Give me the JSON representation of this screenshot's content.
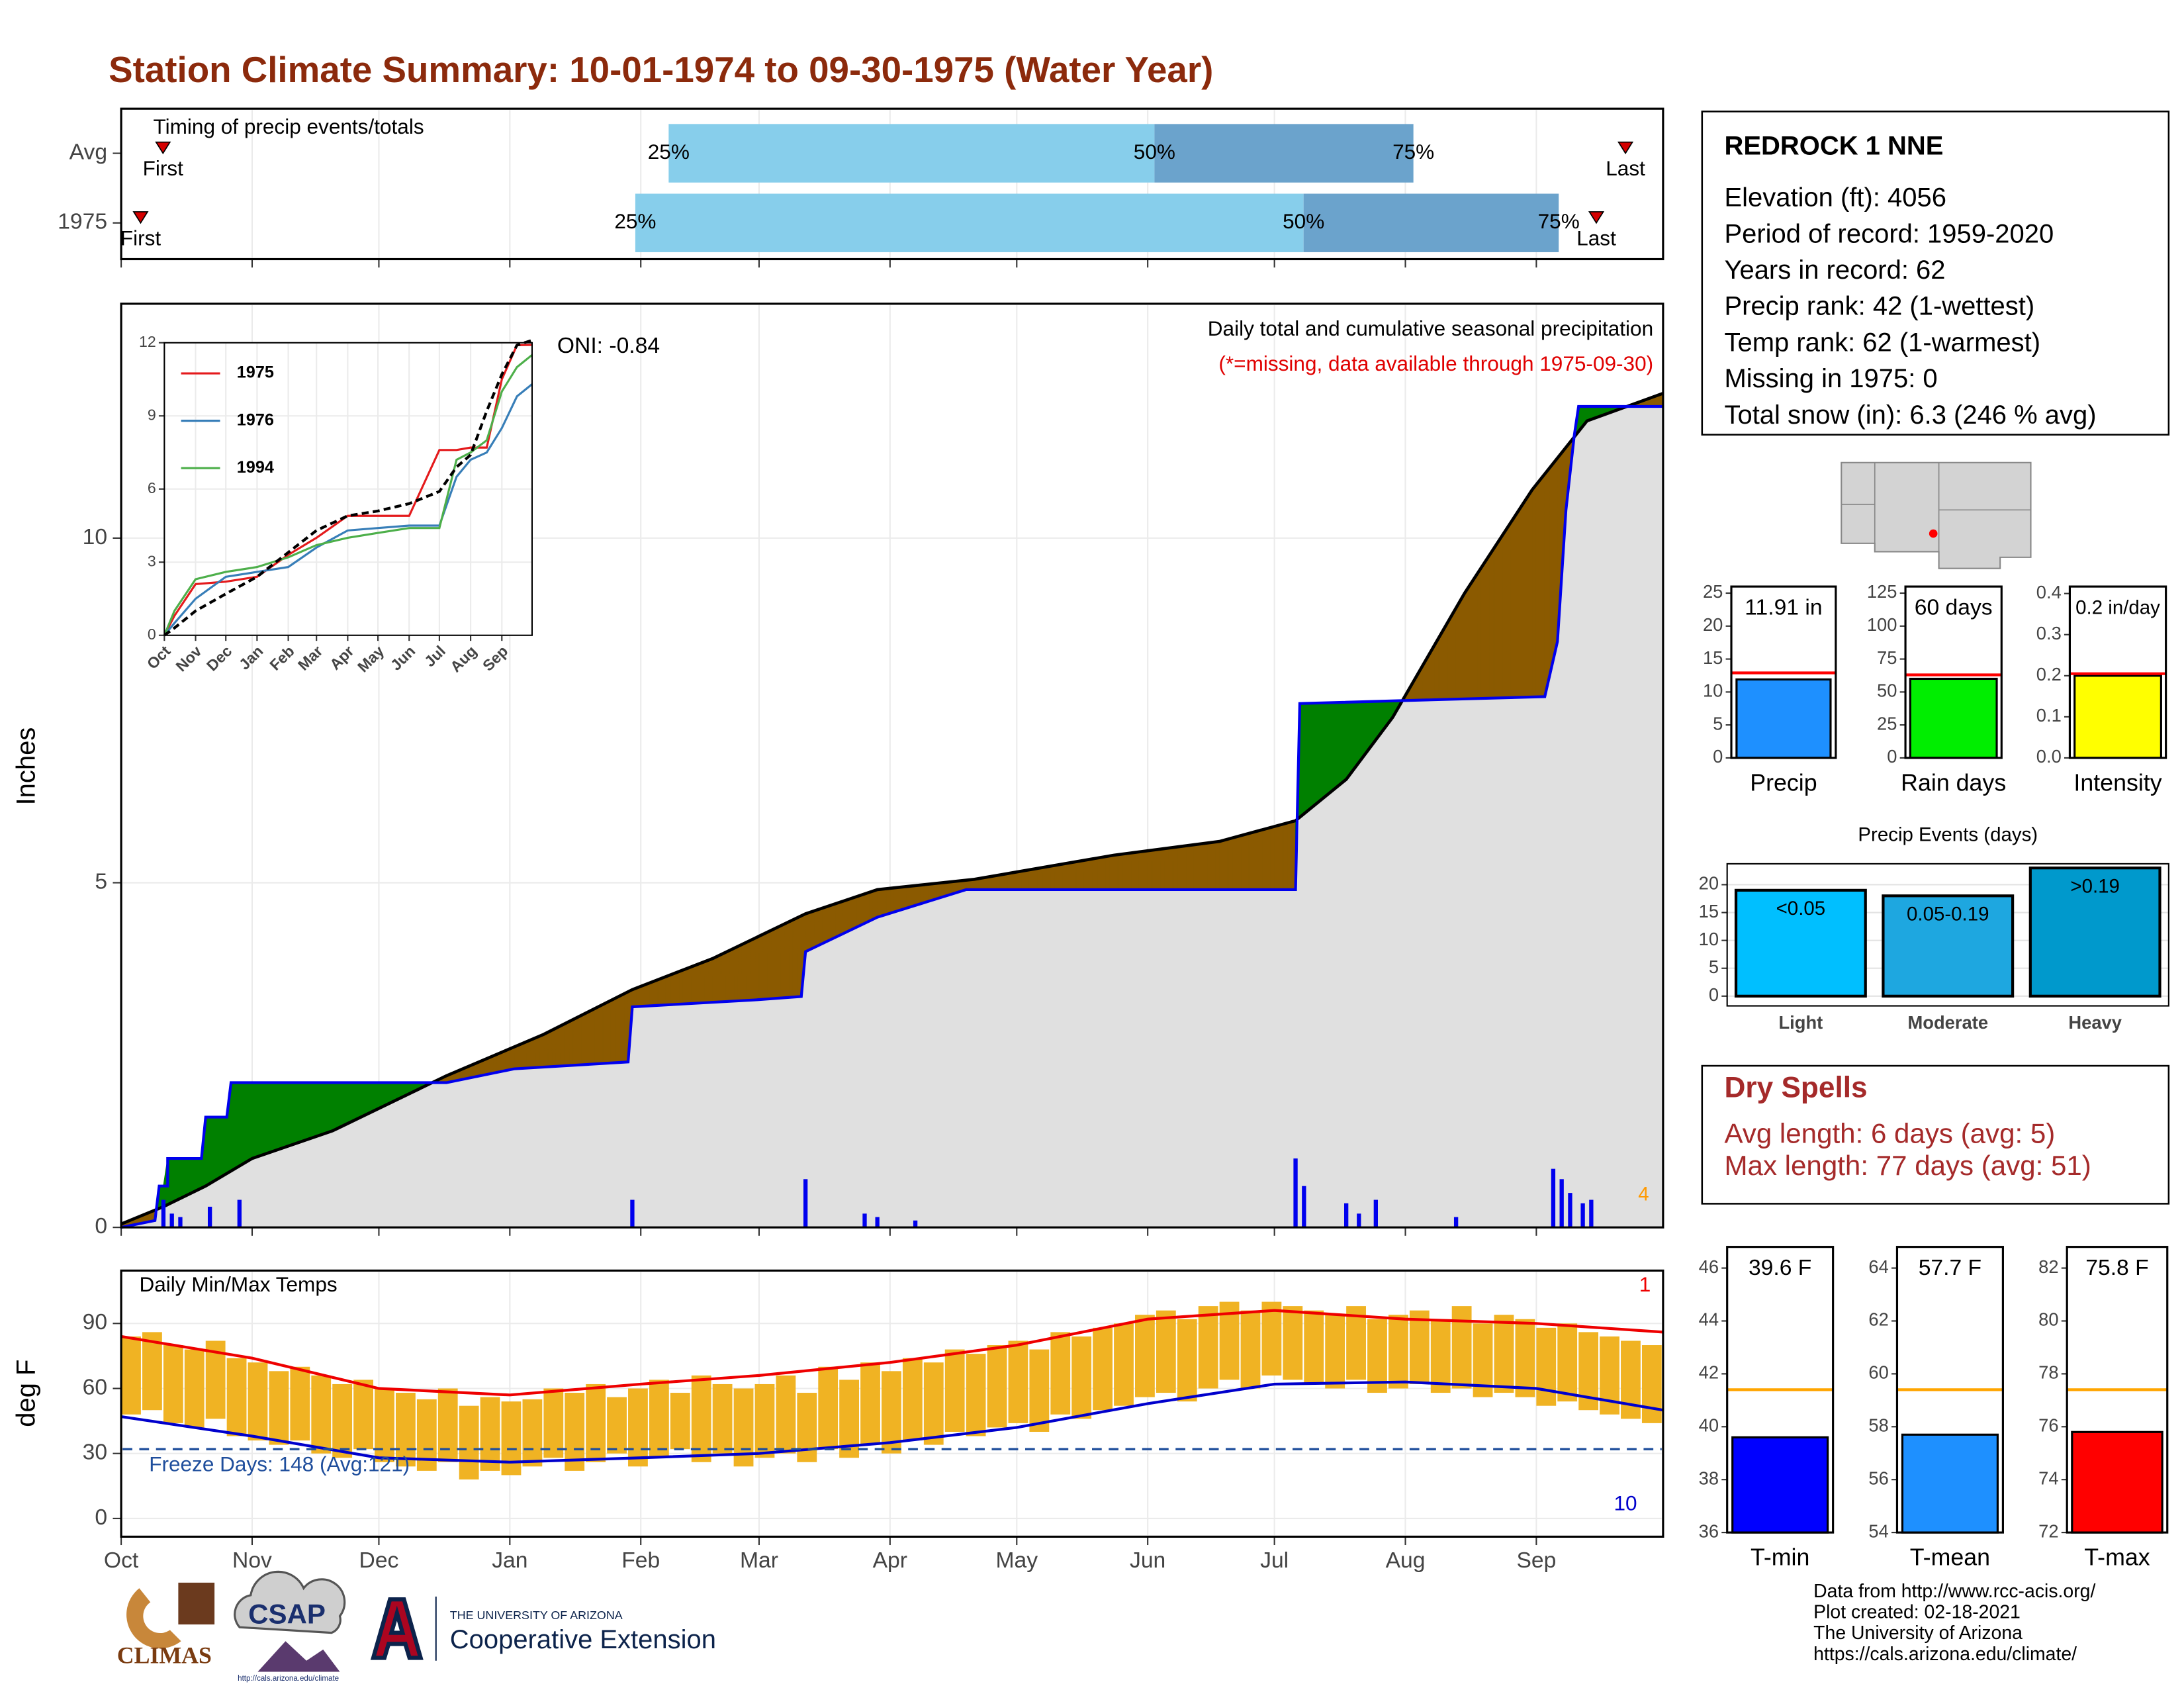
{
  "title": "Station Climate Summary: 10-01-1974 to 09-30-1975 (Water Year)",
  "station": {
    "name": "REDROCK 1 NNE",
    "lines": [
      "Elevation (ft): 4056",
      "Period of record: 1959-2020",
      "Years in record: 62",
      "Precip rank: 42 (1-wettest)",
      "Temp rank: 62 (1-warmest)",
      "Missing in 1975: 0",
      "Total snow (in): 6.3 (246 % avg)"
    ]
  },
  "dry_spells": {
    "title": "Dry Spells",
    "lines": [
      "Avg length: 6 days (avg: 5)",
      "Max length: 77 days (avg: 51)"
    ]
  },
  "credits": [
    "Data from http://www.rcc-acis.org/",
    "Plot created: 02-18-2021",
    "The University of Arizona",
    "https://cals.arizona.edu/climate/"
  ],
  "logos": {
    "climas": "CLIMAS",
    "csap": "CSAP",
    "csap_url": "http://cals.arizona.edu/climate",
    "university": "THE UNIVERSITY OF ARIZONA",
    "extension": "Cooperative Extension"
  },
  "chart_data": [
    {
      "type": "timing",
      "title": "Timing of precip events/totals",
      "labels": [
        "First",
        "25%",
        "50%",
        "75%",
        "Last"
      ],
      "rows": [
        {
          "name": "Avg",
          "values": [
            9.9,
            129.6,
            244.6,
            305.9,
            356.1
          ]
        },
        {
          "name": "1975",
          "values": [
            4.6,
            121.7,
            279.9,
            340.3,
            349.2
          ]
        }
      ],
      "colors": [
        "#87ceeb",
        "#6ba3cc"
      ],
      "marker_color": "#d40000",
      "xlim": [
        0,
        365
      ],
      "xticks": [
        0,
        31,
        61,
        92,
        123,
        151,
        182,
        212,
        243,
        273,
        304,
        335
      ]
    },
    {
      "type": "cumulative",
      "subtitle": "Daily total and cumulative seasonal precipitation",
      "note": "(*=missing, data available through 1975-09-30)",
      "oni": "ONI: -0.84",
      "marker_count": 4,
      "ylabel": "Inches",
      "xlim": [
        0,
        365
      ],
      "ylim": [
        0,
        13.4
      ],
      "yticks": [
        0,
        5,
        10
      ],
      "xticks": [
        0,
        31,
        61,
        92,
        123,
        151,
        182,
        212,
        243,
        273,
        304,
        335
      ],
      "observed": {
        "color": "#0000ee",
        "x": [
          0,
          8,
          9,
          11,
          11,
          19,
          20,
          25,
          26,
          77,
          93,
          120,
          121,
          150,
          161,
          162,
          179,
          200,
          278,
          279,
          337,
          340,
          342,
          344,
          345,
          365
        ],
        "values": [
          0,
          0.1,
          0.6,
          0.6,
          1.0,
          1.0,
          1.6,
          1.6,
          2.1,
          2.1,
          2.3,
          2.4,
          3.2,
          3.3,
          3.35,
          4.0,
          4.5,
          4.9,
          4.9,
          7.6,
          7.7,
          8.5,
          10.4,
          11.5,
          11.91,
          11.91
        ]
      },
      "average": {
        "color": "#000000",
        "x": [
          0,
          10,
          20,
          31,
          50,
          77,
          100,
          121,
          140,
          162,
          179,
          202,
          235,
          260,
          278,
          290,
          301,
          318,
          334,
          347,
          365
        ],
        "values": [
          0.05,
          0.3,
          0.6,
          1.0,
          1.4,
          2.2,
          2.8,
          3.45,
          3.9,
          4.55,
          4.9,
          5.05,
          5.4,
          5.6,
          5.9,
          6.5,
          7.4,
          9.2,
          10.7,
          11.7,
          12.1
        ]
      },
      "daily": {
        "color": "#0000ee",
        "x": [
          10,
          12,
          14,
          21,
          28,
          121,
          162,
          176,
          179,
          188,
          278,
          280,
          290,
          293,
          297,
          316,
          339,
          341,
          343,
          346,
          348
        ],
        "values": [
          0.4,
          0.2,
          0.15,
          0.3,
          0.4,
          0.4,
          0.7,
          0.2,
          0.15,
          0.1,
          1.0,
          0.6,
          0.35,
          0.2,
          0.4,
          0.15,
          0.85,
          0.7,
          0.5,
          0.35,
          0.4
        ]
      },
      "fill_colors": {
        "deficit": "#8b5a00",
        "surplus": "#008000",
        "base": "#e0e0e0"
      },
      "marker_color": "#ff9900"
    },
    {
      "type": "line",
      "xlim": [
        0,
        365
      ],
      "ylim": [
        0,
        12
      ],
      "yticks": [
        0,
        3,
        6,
        9,
        12
      ],
      "xticks": [
        {
          "value": 0,
          "label": "Oct"
        },
        {
          "value": 31,
          "label": "Nov"
        },
        {
          "value": 61,
          "label": "Dec"
        },
        {
          "value": 92,
          "label": "Jan"
        },
        {
          "value": 123,
          "label": "Feb"
        },
        {
          "value": 151,
          "label": "Mar"
        },
        {
          "value": 182,
          "label": "Apr"
        },
        {
          "value": 212,
          "label": "May"
        },
        {
          "value": 243,
          "label": "Jun"
        },
        {
          "value": 273,
          "label": "Jul"
        },
        {
          "value": 304,
          "label": "Aug"
        },
        {
          "value": 335,
          "label": "Sep"
        }
      ],
      "x": [
        0,
        10,
        31,
        61,
        92,
        123,
        151,
        182,
        212,
        243,
        273,
        290,
        304,
        320,
        335,
        350,
        365
      ],
      "series": [
        {
          "name": "1975",
          "color": "#e41a1c",
          "values": [
            0,
            0.8,
            2.1,
            2.2,
            2.4,
            3.3,
            4.0,
            4.9,
            4.9,
            4.9,
            7.6,
            7.6,
            7.7,
            7.7,
            10.5,
            11.9,
            11.91
          ]
        },
        {
          "name": "1976",
          "color": "#377eb8",
          "values": [
            0,
            0.5,
            1.5,
            2.4,
            2.6,
            2.8,
            3.6,
            4.3,
            4.4,
            4.5,
            4.5,
            6.5,
            7.2,
            7.5,
            8.5,
            9.8,
            10.3
          ]
        },
        {
          "name": "1994",
          "color": "#4daf4a",
          "values": [
            0,
            1.0,
            2.3,
            2.6,
            2.8,
            3.2,
            3.7,
            4.0,
            4.2,
            4.4,
            4.4,
            7.2,
            7.5,
            8.0,
            10.0,
            11.0,
            11.5
          ]
        }
      ],
      "average": {
        "color": "#000000",
        "values": [
          0,
          0.3,
          1.0,
          1.7,
          2.4,
          3.4,
          4.3,
          4.9,
          5.1,
          5.4,
          5.9,
          6.9,
          7.4,
          9.2,
          10.7,
          11.9,
          12.1
        ]
      }
    },
    {
      "type": "range_bar",
      "title": "Daily Min/Max Temps",
      "ylabel": "deg F",
      "xlim": [
        0,
        365
      ],
      "ylim": [
        -8.4,
        114.4
      ],
      "yticks": [
        0,
        30,
        60,
        90
      ],
      "xticks": [
        {
          "value": 0,
          "label": "Oct"
        },
        {
          "value": 31,
          "label": "Nov"
        },
        {
          "value": 61,
          "label": "Dec"
        },
        {
          "value": 92,
          "label": "Jan"
        },
        {
          "value": 123,
          "label": "Feb"
        },
        {
          "value": 151,
          "label": "Mar"
        },
        {
          "value": 182,
          "label": "Apr"
        },
        {
          "value": 212,
          "label": "May"
        },
        {
          "value": 243,
          "label": "Jun"
        },
        {
          "value": 273,
          "label": "Jul"
        },
        {
          "value": 304,
          "label": "Aug"
        },
        {
          "value": 335,
          "label": "Sep"
        }
      ],
      "x": [
        0,
        5,
        10,
        15,
        20,
        25,
        30,
        35,
        40,
        45,
        50,
        55,
        60,
        65,
        70,
        75,
        80,
        85,
        90,
        95,
        100,
        105,
        110,
        115,
        120,
        125,
        130,
        135,
        140,
        145,
        150,
        155,
        160,
        165,
        170,
        175,
        180,
        185,
        190,
        195,
        200,
        205,
        210,
        215,
        220,
        225,
        230,
        235,
        240,
        245,
        250,
        255,
        260,
        265,
        270,
        275,
        280,
        285,
        290,
        295,
        300,
        305,
        310,
        315,
        320,
        325,
        330,
        335,
        340,
        345,
        350,
        355,
        360
      ],
      "bin_width": 5,
      "high": {
        "values": [
          84,
          86,
          80,
          78,
          82,
          74,
          72,
          68,
          70,
          66,
          62,
          64,
          60,
          58,
          55,
          60,
          52,
          56,
          54,
          55,
          60,
          58,
          62,
          56,
          60,
          64,
          58,
          66,
          62,
          60,
          62,
          66,
          58,
          70,
          64,
          72,
          68,
          74,
          72,
          78,
          76,
          80,
          82,
          78,
          86,
          84,
          88,
          90,
          94,
          96,
          92,
          98,
          100,
          96,
          100,
          98,
          96,
          94,
          98,
          92,
          94,
          96,
          92,
          98,
          90,
          94,
          92,
          88,
          90,
          86,
          84,
          82,
          80
        ]
      },
      "low": {
        "values": [
          48,
          50,
          44,
          42,
          46,
          38,
          36,
          34,
          36,
          30,
          28,
          32,
          26,
          24,
          22,
          26,
          18,
          22,
          20,
          24,
          28,
          22,
          26,
          30,
          24,
          28,
          32,
          26,
          30,
          24,
          28,
          30,
          26,
          32,
          28,
          34,
          30,
          36,
          34,
          40,
          38,
          42,
          44,
          40,
          48,
          46,
          50,
          52,
          56,
          58,
          54,
          60,
          64,
          60,
          66,
          64,
          62,
          60,
          64,
          58,
          60,
          62,
          58,
          60,
          56,
          58,
          56,
          52,
          54,
          50,
          48,
          46,
          44
        ]
      },
      "bar_color": "#f0b323",
      "normal_high": {
        "color": "#ee0000",
        "x": [
          0,
          31,
          61,
          92,
          123,
          151,
          182,
          212,
          243,
          273,
          304,
          335,
          365
        ],
        "values": [
          84,
          74,
          60,
          57,
          62,
          66,
          72,
          80,
          92,
          96,
          92,
          90,
          86
        ]
      },
      "normal_low": {
        "color": "#0000cc",
        "x": [
          0,
          31,
          61,
          92,
          123,
          151,
          182,
          212,
          243,
          273,
          304,
          335,
          365
        ],
        "values": [
          47,
          38,
          28,
          26,
          28,
          30,
          35,
          42,
          53,
          62,
          63,
          60,
          50
        ]
      },
      "freeze": {
        "value": 32,
        "label": "Freeze Days: 148 (Avg:121)",
        "color": "#1f4e9c"
      },
      "record_high_count": 1,
      "record_low_count": 10
    },
    {
      "type": "bar",
      "categories": [
        "Precip"
      ],
      "values": [
        11.91
      ],
      "value_labels": [
        "11.91 in"
      ],
      "color": "#1e90ff",
      "average": 12.9,
      "average_color": "#ff0000",
      "ylim": [
        0,
        26
      ],
      "yticks": [
        0,
        5,
        10,
        15,
        20,
        25
      ]
    },
    {
      "type": "bar",
      "categories": [
        "Rain days"
      ],
      "values": [
        60
      ],
      "value_labels": [
        "60 days"
      ],
      "color": "#00ee00",
      "average": 63,
      "average_color": "#ff0000",
      "ylim": [
        0,
        130
      ],
      "yticks": [
        0,
        25,
        50,
        75,
        100,
        125
      ]
    },
    {
      "type": "bar",
      "categories": [
        "Intensity"
      ],
      "values": [
        0.2
      ],
      "value_labels": [
        "0.2 in/day"
      ],
      "color": "#ffff00",
      "average": 0.205,
      "average_color": "#ff0000",
      "ylim": [
        0,
        0.417
      ],
      "yticks": [
        {
          "value": 0,
          "label": "0.0"
        },
        0.1,
        0.2,
        0.3,
        0.4
      ]
    },
    {
      "type": "bar",
      "title": "Precip Events (days)",
      "categories": [
        "Light",
        "Moderate",
        "Heavy"
      ],
      "values": [
        19,
        18,
        23
      ],
      "ranges": [
        "<0.05",
        "0.05-0.19",
        ">0.19"
      ],
      "colors": [
        "#00bfff",
        "#1ea7e0",
        "#0099cc"
      ],
      "ylim": [
        -1.75,
        23.75
      ],
      "yticks": [
        0,
        5,
        10,
        15,
        20
      ],
      "grid": true
    },
    {
      "type": "bar",
      "categories": [
        "T-min"
      ],
      "values": [
        39.6
      ],
      "value_labels": [
        "39.6 F"
      ],
      "color": "#0000ff",
      "average": 41.4,
      "average_color": "#ffa500",
      "ylim": [
        36,
        46.8
      ],
      "yticks": [
        36,
        38,
        40,
        42,
        44,
        46
      ]
    },
    {
      "type": "bar",
      "categories": [
        "T-mean"
      ],
      "values": [
        57.7
      ],
      "value_labels": [
        "57.7 F"
      ],
      "color": "#1e90ff",
      "average": 59.4,
      "average_color": "#ffa500",
      "ylim": [
        54,
        64.8
      ],
      "yticks": [
        54,
        56,
        58,
        60,
        62,
        64
      ]
    },
    {
      "type": "bar",
      "categories": [
        "T-max"
      ],
      "values": [
        75.8
      ],
      "value_labels": [
        "75.8 F"
      ],
      "color": "#ff0000",
      "average": 77.4,
      "average_color": "#ffa500",
      "ylim": [
        72,
        82.8
      ],
      "yticks": [
        72,
        74,
        76,
        78,
        80,
        82
      ]
    }
  ]
}
